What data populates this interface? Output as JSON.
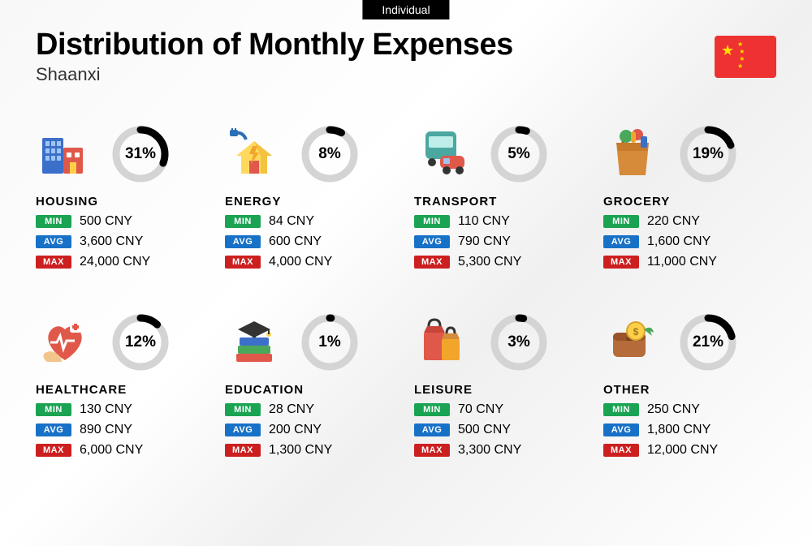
{
  "badge": "Individual",
  "title": "Distribution of Monthly Expenses",
  "subtitle": "Shaanxi",
  "currency": "CNY",
  "ring": {
    "track_color": "#d4d4d4",
    "progress_color": "#000000",
    "stroke_width": 9,
    "radius": 30
  },
  "tag_labels": {
    "min": "MIN",
    "avg": "AVG",
    "max": "MAX"
  },
  "tag_colors": {
    "min": "#1aa352",
    "avg": "#1771c7",
    "max": "#cc1f1f"
  },
  "flag": {
    "bg": "#ee3131",
    "star": "#ffde00"
  },
  "categories": [
    {
      "name": "HOUSING",
      "percent": 31,
      "min": "500",
      "avg": "3,600",
      "max": "24,000",
      "icon": "housing"
    },
    {
      "name": "ENERGY",
      "percent": 8,
      "min": "84",
      "avg": "600",
      "max": "4,000",
      "icon": "energy"
    },
    {
      "name": "TRANSPORT",
      "percent": 5,
      "min": "110",
      "avg": "790",
      "max": "5,300",
      "icon": "transport"
    },
    {
      "name": "GROCERY",
      "percent": 19,
      "min": "220",
      "avg": "1,600",
      "max": "11,000",
      "icon": "grocery"
    },
    {
      "name": "HEALTHCARE",
      "percent": 12,
      "min": "130",
      "avg": "890",
      "max": "6,000",
      "icon": "healthcare"
    },
    {
      "name": "EDUCATION",
      "percent": 1,
      "min": "28",
      "avg": "200",
      "max": "1,300",
      "icon": "education"
    },
    {
      "name": "LEISURE",
      "percent": 3,
      "min": "70",
      "avg": "500",
      "max": "3,300",
      "icon": "leisure"
    },
    {
      "name": "OTHER",
      "percent": 21,
      "min": "250",
      "avg": "1,800",
      "max": "12,000",
      "icon": "other"
    }
  ]
}
